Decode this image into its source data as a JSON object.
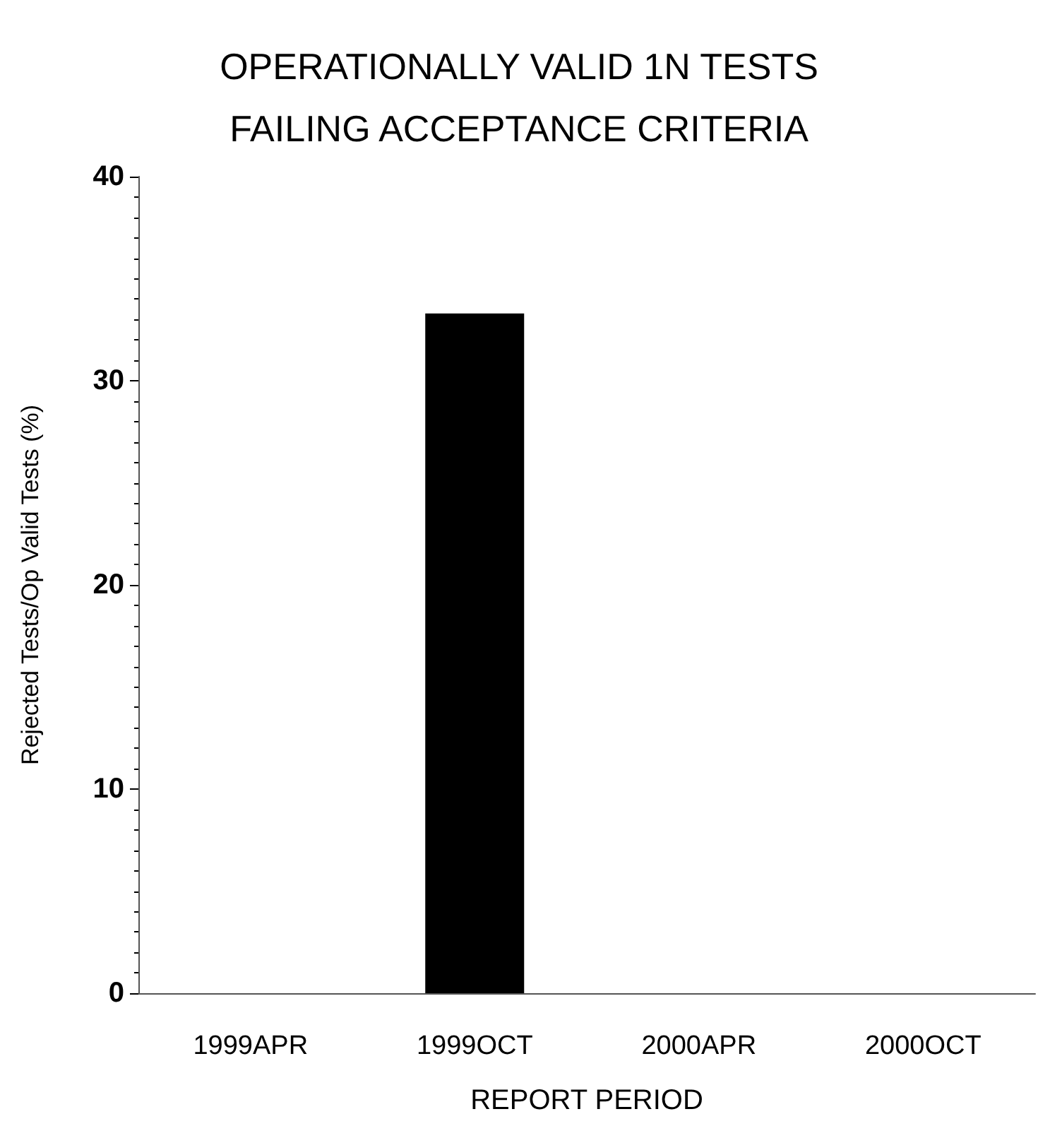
{
  "chart_data": {
    "type": "bar",
    "title": "OPERATIONALLY VALID 1N TESTS\nFAILING ACCEPTANCE CRITERIA",
    "xlabel": "REPORT PERIOD",
    "ylabel": "Rejected Tests/Op Valid Tests (%)",
    "categories": [
      "1999APR",
      "1999OCT",
      "2000APR",
      "2000OCT"
    ],
    "values": [
      0,
      33.3,
      0,
      0
    ],
    "color": "#000000",
    "ylim": [
      0,
      40
    ],
    "yticks": [
      0,
      10,
      20,
      30,
      40
    ],
    "grid": false
  }
}
